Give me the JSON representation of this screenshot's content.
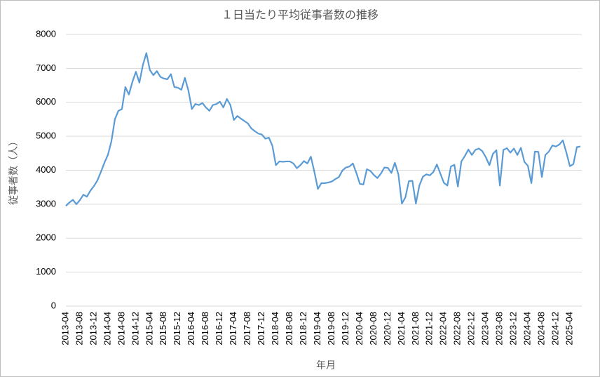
{
  "chart_data": {
    "type": "line",
    "title": "１日当たり平均従事者数の推移",
    "x_label": "年月",
    "y_label": "従事者数（人）",
    "categories": [
      "2013-04",
      null,
      null,
      null,
      "2013-08",
      null,
      null,
      null,
      "2013-12",
      null,
      null,
      null,
      "2014-04",
      null,
      null,
      null,
      "2014-08",
      null,
      null,
      null,
      "2014-12",
      null,
      null,
      null,
      "2015-04",
      null,
      null,
      null,
      "2015-08",
      null,
      null,
      null,
      "2015-12",
      null,
      null,
      null,
      "2016-04",
      null,
      null,
      null,
      "2016-08",
      null,
      null,
      null,
      "2016-12",
      null,
      null,
      null,
      "2017-04",
      null,
      null,
      null,
      "2017-08",
      null,
      null,
      null,
      "2017-12",
      null,
      null,
      null,
      "2018-04",
      null,
      null,
      null,
      "2018-08",
      null,
      null,
      null,
      "2018-12",
      null,
      null,
      null,
      "2019-04",
      null,
      null,
      null,
      "2019-08",
      null,
      null,
      null,
      "2019-12",
      null,
      null,
      null,
      "2020-04",
      null,
      null,
      null,
      "2020-08",
      null,
      null,
      null,
      "2020-12",
      null,
      null,
      null,
      "2021-04",
      null,
      null,
      null,
      "2021-08",
      null,
      null,
      null,
      "2021-12",
      null,
      null,
      null,
      "2022-04",
      null,
      null,
      null,
      "2022-08",
      null,
      null,
      null,
      "2022-12",
      null,
      null,
      null,
      "2023-04",
      null,
      null,
      null,
      "2023-08",
      null,
      null,
      null,
      "2023-12",
      null,
      null,
      null,
      "2024-04",
      null,
      null,
      null,
      "2024-08",
      null,
      null,
      null,
      "2024-12",
      null,
      null,
      null,
      "2025-04",
      null,
      null,
      null
    ],
    "series": [
      {
        "name": "従事者数",
        "color": "#5b9bd5",
        "values": [
          2950,
          3050,
          3130,
          3000,
          3120,
          3280,
          3220,
          3400,
          3530,
          3700,
          3950,
          4220,
          4450,
          4850,
          5500,
          5750,
          5800,
          6450,
          6230,
          6600,
          6900,
          6580,
          7100,
          7450,
          6950,
          6800,
          6920,
          6750,
          6700,
          6680,
          6830,
          6450,
          6430,
          6370,
          6720,
          6350,
          5800,
          5950,
          5920,
          5980,
          5850,
          5750,
          5920,
          5950,
          6020,
          5850,
          6100,
          5920,
          5480,
          5600,
          5520,
          5450,
          5380,
          5230,
          5150,
          5080,
          5050,
          4930,
          4960,
          4720,
          4150,
          4260,
          4250,
          4260,
          4260,
          4200,
          4060,
          4150,
          4270,
          4200,
          4400,
          3950,
          3450,
          3620,
          3620,
          3640,
          3670,
          3740,
          3800,
          3990,
          4080,
          4110,
          4200,
          3920,
          3600,
          3580,
          4030,
          3980,
          3860,
          3770,
          3900,
          4080,
          4070,
          3920,
          4220,
          3880,
          3020,
          3200,
          3680,
          3690,
          3020,
          3550,
          3810,
          3880,
          3850,
          3950,
          4170,
          3900,
          3630,
          3550,
          4110,
          4160,
          3520,
          4260,
          4420,
          4610,
          4450,
          4600,
          4640,
          4560,
          4380,
          4150,
          4480,
          4590,
          3550,
          4600,
          4650,
          4520,
          4640,
          4450,
          4660,
          4250,
          4130,
          3620,
          4550,
          4540,
          3800,
          4450,
          4550,
          4730,
          4700,
          4760,
          4880,
          4520,
          4120,
          4180,
          4680,
          4700
        ]
      }
    ],
    "ylim": [
      0,
      8000
    ],
    "yticks": [
      0,
      1000,
      2000,
      3000,
      4000,
      5000,
      6000,
      7000,
      8000
    ],
    "grid": true
  }
}
